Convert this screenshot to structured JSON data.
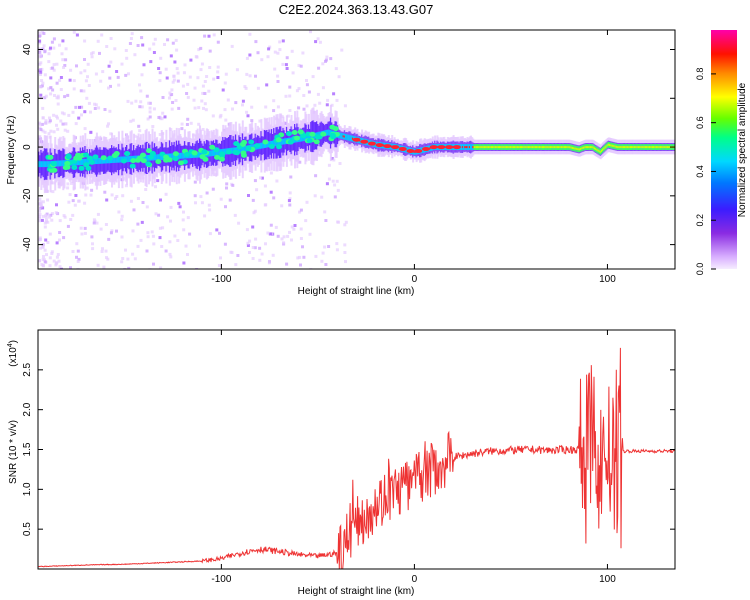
{
  "title": "C2E2.2024.363.13.43.G07",
  "chart_data": [
    {
      "type": "heatmap",
      "xlabel": "Height of straight line (km)",
      "ylabel": "Frequency (Hz)",
      "xlim": [
        -195,
        135
      ],
      "ylim": [
        -50,
        48
      ],
      "xticks": [
        -100,
        0,
        100
      ],
      "yticks": [
        -40,
        -20,
        0,
        20,
        40
      ],
      "colorbar": {
        "label": "Normalized spectral amplitude",
        "range": [
          0,
          0.98
        ],
        "ticks": [
          0.0,
          0.2,
          0.4,
          0.6,
          0.8
        ],
        "colors": [
          "#f2e4ff",
          "#8a2be2",
          "#2233ff",
          "#00d8ff",
          "#00ff7a",
          "#66ff00",
          "#ffff00",
          "#ff8800",
          "#ff0000",
          "#ff00aa"
        ]
      },
      "trace": {
        "x": [
          -190,
          -170,
          -150,
          -130,
          -110,
          -90,
          -70,
          -55,
          -45,
          -40,
          -30,
          -20,
          -10,
          0,
          10,
          20,
          40,
          60,
          80,
          85,
          88,
          92,
          96,
          100,
          105,
          120,
          135
        ],
        "freq": [
          -7,
          -6,
          -5,
          -4,
          -3,
          -1,
          2,
          4,
          6,
          5,
          3,
          1,
          0,
          -2,
          0,
          0,
          0,
          0,
          0,
          -1,
          0,
          0,
          -2,
          1,
          0,
          0,
          0
        ]
      }
    },
    {
      "type": "line",
      "xlabel": "Height of straight line (km)",
      "ylabel": "SNR (10 * v/v)",
      "yexponent": "(x10",
      "yexponent_power": "4",
      "yexponent_close": ")",
      "xlim": [
        -195,
        135
      ],
      "ylim": [
        0,
        3.0
      ],
      "xticks": [
        -100,
        0,
        100
      ],
      "yticks": [
        0.5,
        1.0,
        1.5,
        2.0,
        2.5
      ],
      "color": "#ee3333",
      "x": [
        -195,
        -170,
        -150,
        -130,
        -110,
        -100,
        -90,
        -80,
        -70,
        -60,
        -50,
        -40,
        -35,
        -30,
        -25,
        -20,
        -15,
        -10,
        -5,
        0,
        5,
        10,
        15,
        20,
        30,
        40,
        50,
        60,
        70,
        80,
        88,
        92,
        96,
        100,
        104,
        106,
        110,
        120,
        135
      ],
      "y": [
        0.03,
        0.05,
        0.06,
        0.08,
        0.1,
        0.13,
        0.2,
        0.25,
        0.22,
        0.18,
        0.16,
        0.2,
        0.4,
        0.55,
        0.7,
        0.82,
        0.9,
        0.97,
        1.03,
        1.1,
        1.18,
        1.26,
        1.34,
        1.4,
        1.45,
        1.48,
        1.49,
        1.5,
        1.49,
        1.5,
        1.5,
        1.7,
        1.3,
        1.5,
        1.2,
        1.48,
        1.48,
        1.48,
        1.48
      ]
    }
  ]
}
